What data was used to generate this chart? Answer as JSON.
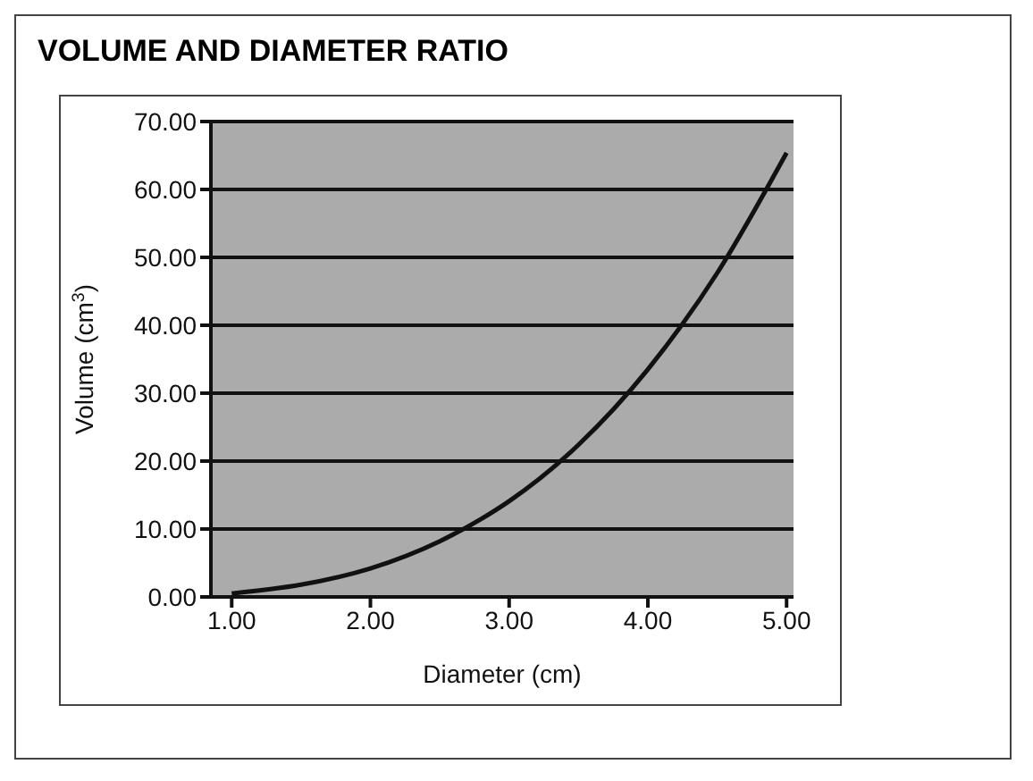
{
  "chart_data": {
    "type": "line",
    "title": "VOLUME AND DIAMETER RATIO",
    "xlabel": "Diameter (cm)",
    "ylabel": "Volume (cm$^{3}$)",
    "series": [
      {
        "color": "#111111",
        "x": [
          1,
          1.5,
          2,
          2.5,
          2.8,
          3,
          3.5,
          4,
          4.5,
          5
        ],
        "values": [
          0.5,
          1.8,
          4.2,
          8.2,
          11.5,
          14.1,
          22.4,
          33.5,
          47.7,
          65.4
        ]
      }
    ],
    "xlim": [
      0.85,
      5.05
    ],
    "xticks": [
      {
        "value": 1,
        "label": "1.00"
      },
      {
        "value": 2,
        "label": "2.00"
      },
      {
        "value": 3,
        "label": "3.00"
      },
      {
        "value": 4,
        "label": "4.00"
      },
      {
        "value": 5,
        "label": "5.00"
      }
    ],
    "ylim": [
      0,
      70
    ],
    "yticks": [
      {
        "value": 0,
        "label": "0.00"
      },
      {
        "value": 10,
        "label": "10.00"
      },
      {
        "value": 20,
        "label": "20.00"
      },
      {
        "value": 30,
        "label": "30.00"
      },
      {
        "value": 40,
        "label": "40.00"
      },
      {
        "value": 50,
        "label": "50.00"
      },
      {
        "value": 60,
        "label": "60.00"
      },
      {
        "value": 70,
        "label": "70.00"
      }
    ],
    "grid": "y",
    "marker": "none",
    "line_style": "solid"
  }
}
